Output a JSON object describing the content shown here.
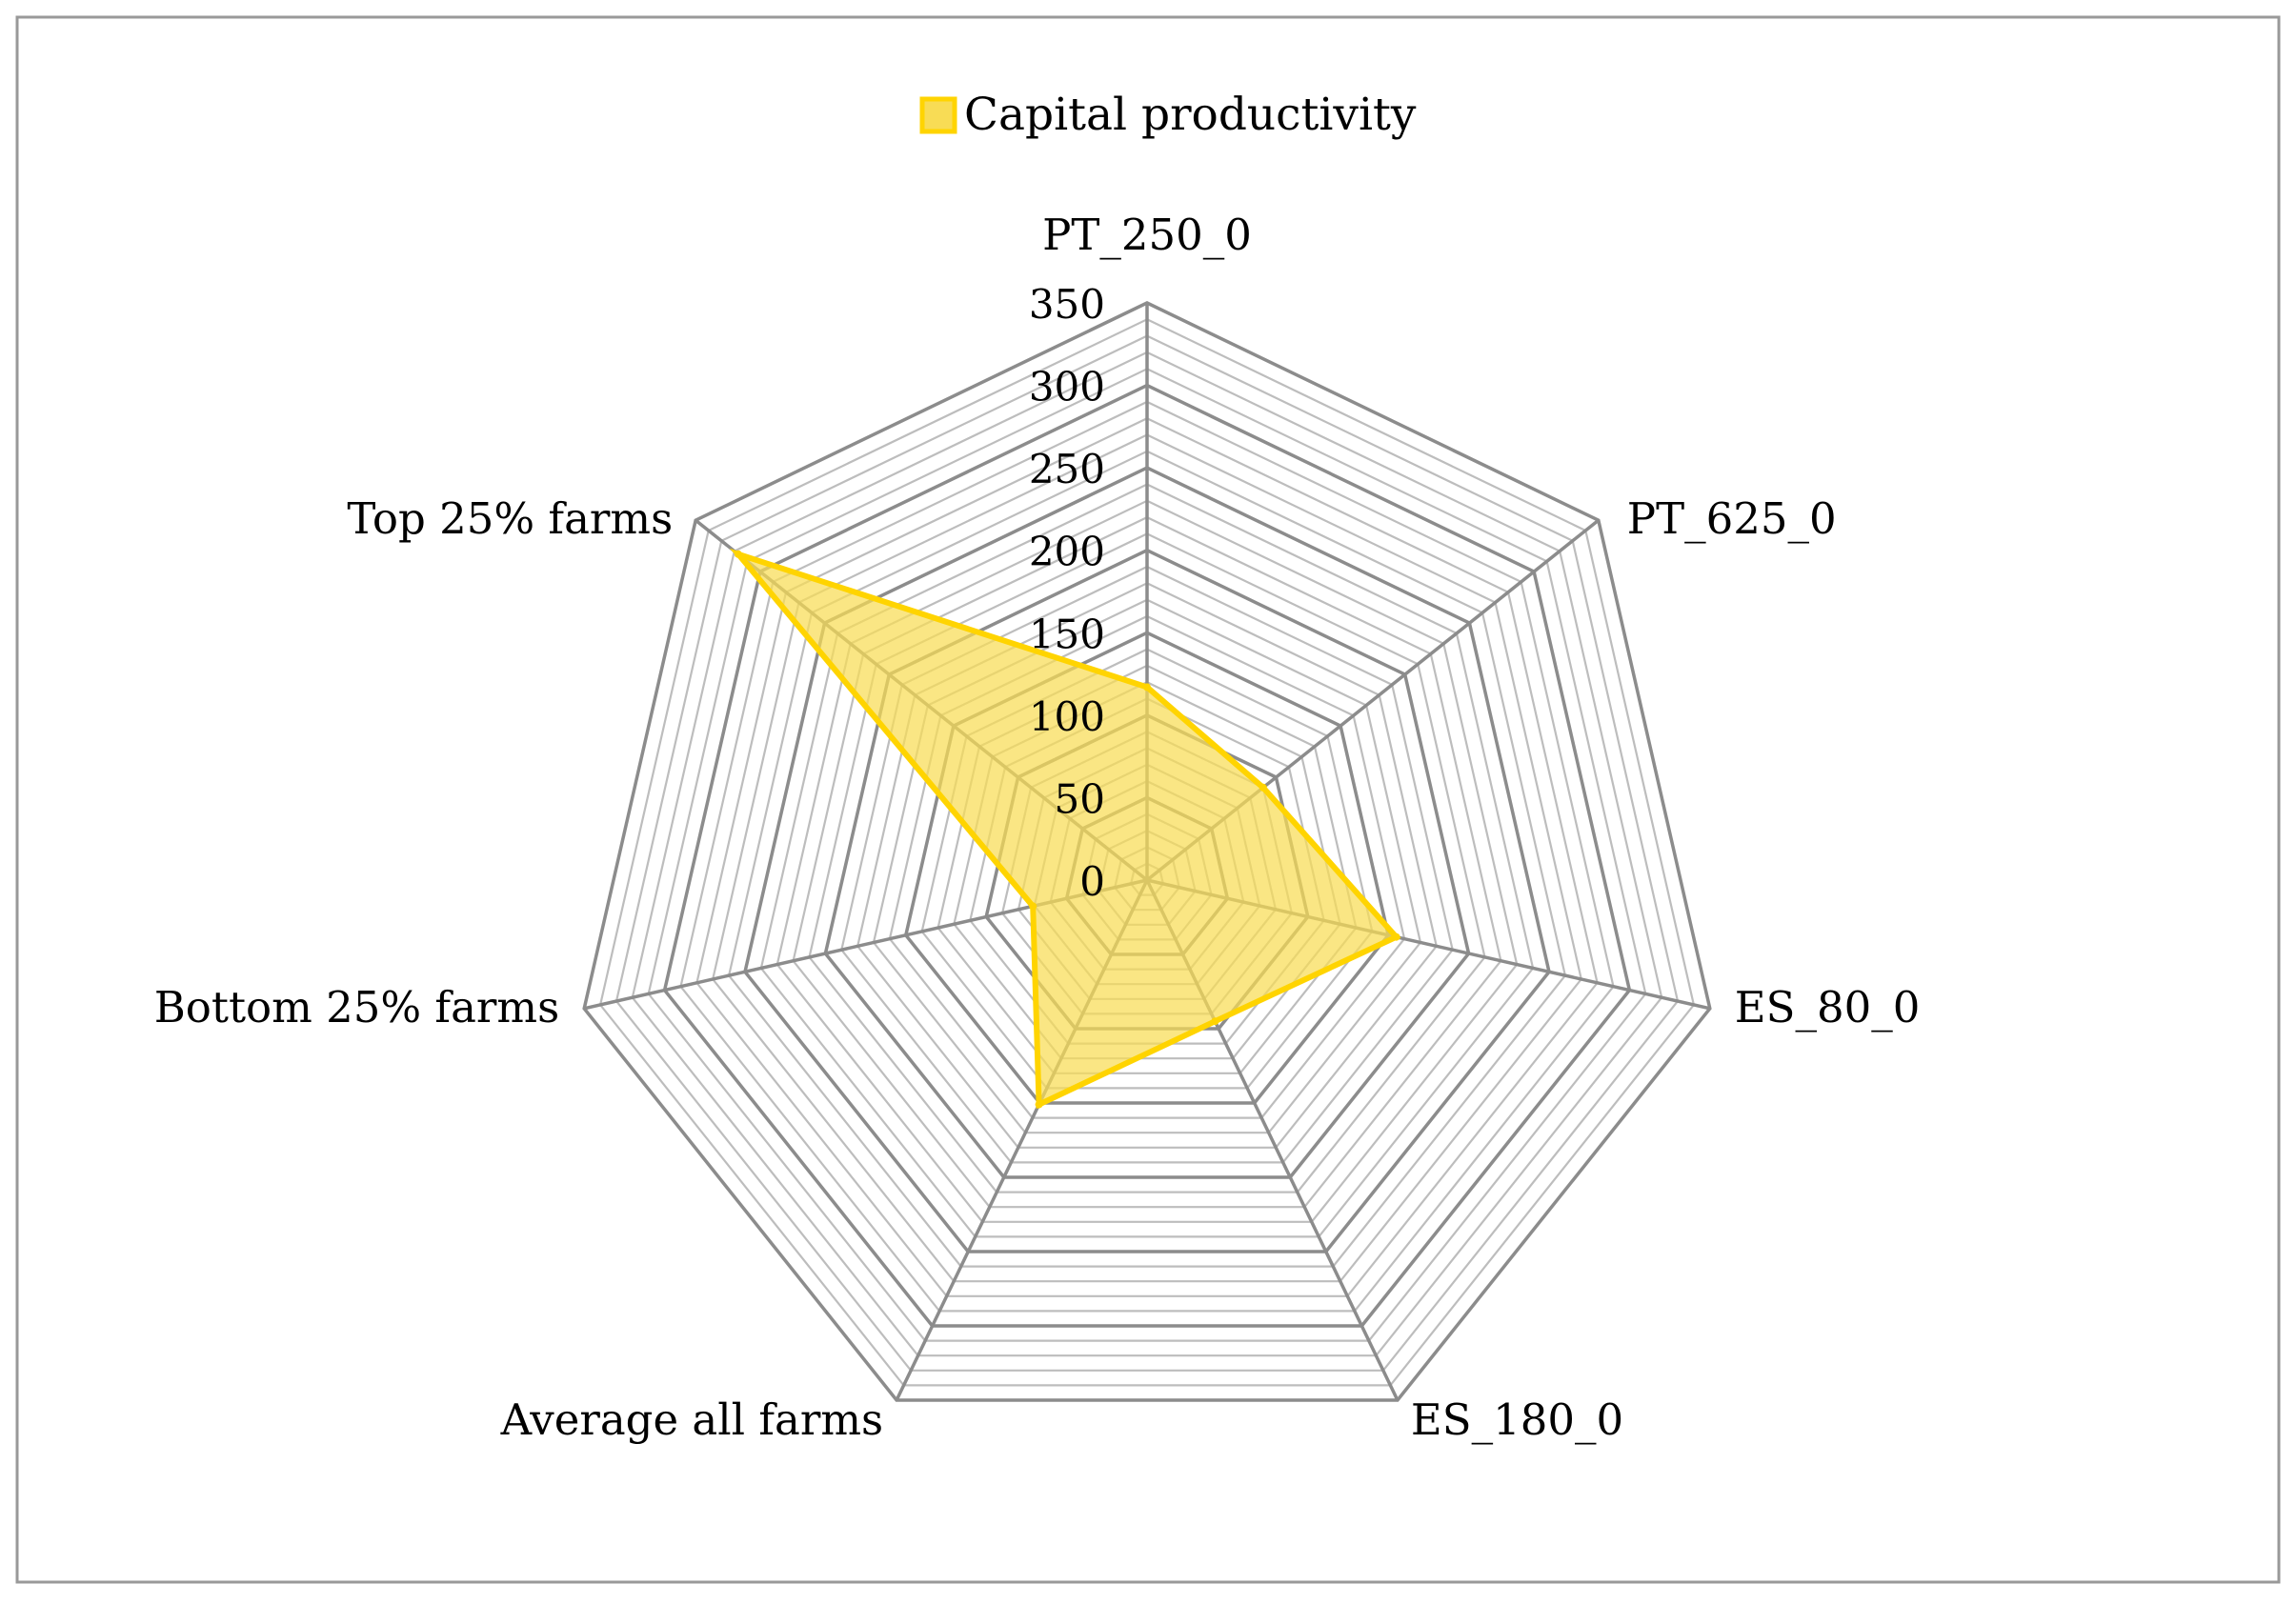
{
  "chart_data": {
    "type": "radar",
    "title": "",
    "axes": [
      "PT_250_0",
      "PT_625_0",
      "ES_80_0",
      "ES_180_0",
      "Average all farms",
      "Bottom 25% farms",
      "Top 25% farms"
    ],
    "series": [
      {
        "name": "Capital productivity",
        "values": [
          117,
          90,
          155,
          95,
          151,
          71,
          317
        ]
      }
    ],
    "rlim": [
      0,
      350
    ],
    "major_ticks": [
      0,
      50,
      100,
      150,
      200,
      250,
      300,
      350
    ],
    "minor_step": 10,
    "legend": "top-center",
    "colors": {
      "fill": "#F8DC55",
      "line": "#FFD400",
      "major_grid": "#8C8C8C",
      "minor_grid": "#BDBDBD",
      "text": "#000000",
      "frame": "#999999"
    }
  }
}
